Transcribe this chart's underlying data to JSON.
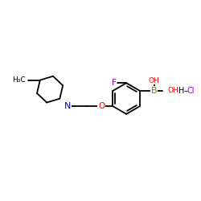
{
  "background_color": "#ffffff",
  "bond_color": "#000000",
  "atom_colors": {
    "N": "#0000cc",
    "O": "#ff0000",
    "F": "#9900cc",
    "B": "#808000",
    "Cl": "#9900cc",
    "H": "#000000",
    "C": "#000000"
  },
  "lw": 1.3,
  "fs": 6.5,
  "figsize": [
    2.5,
    2.5
  ],
  "dpi": 100,
  "xlim": [
    0,
    10
  ],
  "ylim": [
    0,
    10
  ]
}
